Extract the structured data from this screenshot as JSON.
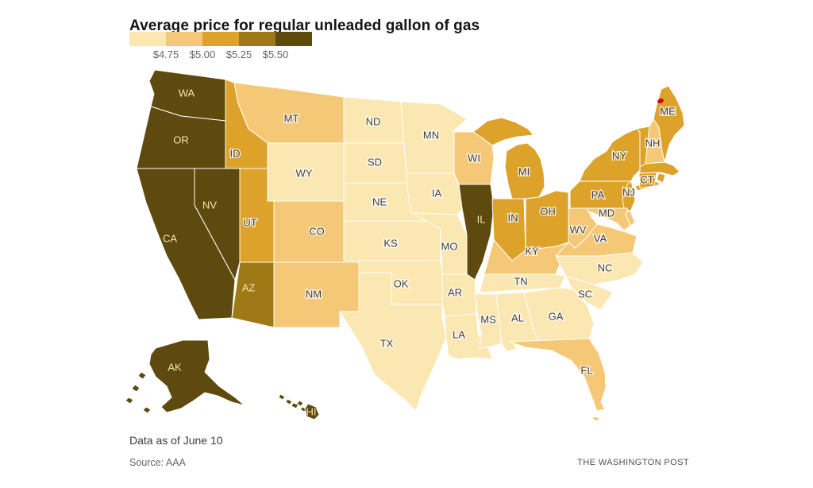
{
  "title": "Average price for regular unleaded gallon of gas",
  "legend": {
    "tick_labels": [
      "$4.75",
      "$5.00",
      "$5.25",
      "$5.50"
    ],
    "bucket_colors": [
      "#FBE7B2",
      "#F5C877",
      "#DDA22A",
      "#9E7915",
      "#5E4A0E"
    ],
    "bucket_ranges": [
      "<$4.75",
      "$4.75-$5.00",
      "$5.00-$5.25",
      "$5.25-$5.50",
      ">$5.50"
    ]
  },
  "marker": {
    "color": "#D0021B"
  },
  "footer": {
    "data_note": "Data as of June 10",
    "source": "Source: AAA",
    "credit": "THE WASHINGTON POST"
  },
  "chart_data": {
    "type": "choropleth",
    "title": "Average price for regular unleaded gallon of gas",
    "unit": "USD per regular unleaded gallon",
    "legend_thresholds": [
      "$4.75",
      "$5.00",
      "$5.25",
      "$5.50"
    ],
    "bucket_ranges": [
      "<$4.75",
      "$4.75-$5.00",
      "$5.00-$5.25",
      "$5.25-$5.50",
      ">$5.50"
    ],
    "states": [
      {
        "abbr": "WA",
        "bucket": 5,
        "labeled": true
      },
      {
        "abbr": "OR",
        "bucket": 5,
        "labeled": true
      },
      {
        "abbr": "CA",
        "bucket": 5,
        "labeled": true
      },
      {
        "abbr": "NV",
        "bucket": 5,
        "labeled": true
      },
      {
        "abbr": "ID",
        "bucket": 3,
        "labeled": true
      },
      {
        "abbr": "MT",
        "bucket": 2,
        "labeled": true
      },
      {
        "abbr": "WY",
        "bucket": 1,
        "labeled": true
      },
      {
        "abbr": "UT",
        "bucket": 3,
        "labeled": true
      },
      {
        "abbr": "CO",
        "bucket": 2,
        "labeled": true
      },
      {
        "abbr": "AZ",
        "bucket": 4,
        "labeled": true
      },
      {
        "abbr": "NM",
        "bucket": 2,
        "labeled": true
      },
      {
        "abbr": "ND",
        "bucket": 1,
        "labeled": true
      },
      {
        "abbr": "SD",
        "bucket": 1,
        "labeled": true
      },
      {
        "abbr": "NE",
        "bucket": 1,
        "labeled": true
      },
      {
        "abbr": "KS",
        "bucket": 1,
        "labeled": true
      },
      {
        "abbr": "OK",
        "bucket": 1,
        "labeled": true
      },
      {
        "abbr": "TX",
        "bucket": 1,
        "labeled": true
      },
      {
        "abbr": "MN",
        "bucket": 1,
        "labeled": true
      },
      {
        "abbr": "IA",
        "bucket": 1,
        "labeled": true
      },
      {
        "abbr": "MO",
        "bucket": 1,
        "labeled": true
      },
      {
        "abbr": "AR",
        "bucket": 1,
        "labeled": true
      },
      {
        "abbr": "LA",
        "bucket": 1,
        "labeled": true
      },
      {
        "abbr": "WI",
        "bucket": 2,
        "labeled": true
      },
      {
        "abbr": "IL",
        "bucket": 5,
        "labeled": true
      },
      {
        "abbr": "MI",
        "bucket": 3,
        "labeled": true
      },
      {
        "abbr": "IN",
        "bucket": 3,
        "labeled": true
      },
      {
        "abbr": "OH",
        "bucket": 3,
        "labeled": true
      },
      {
        "abbr": "KY",
        "bucket": 2,
        "labeled": true
      },
      {
        "abbr": "TN",
        "bucket": 1,
        "labeled": true
      },
      {
        "abbr": "MS",
        "bucket": 1,
        "labeled": true
      },
      {
        "abbr": "AL",
        "bucket": 1,
        "labeled": true
      },
      {
        "abbr": "GA",
        "bucket": 1,
        "labeled": true
      },
      {
        "abbr": "WV",
        "bucket": 2,
        "labeled": true
      },
      {
        "abbr": "VA",
        "bucket": 2,
        "labeled": true
      },
      {
        "abbr": "NC",
        "bucket": 1,
        "labeled": true
      },
      {
        "abbr": "SC",
        "bucket": 1,
        "labeled": true
      },
      {
        "abbr": "FL",
        "bucket": 2,
        "labeled": true
      },
      {
        "abbr": "PA",
        "bucket": 3,
        "labeled": true
      },
      {
        "abbr": "NY",
        "bucket": 3,
        "labeled": true
      },
      {
        "abbr": "NJ",
        "bucket": 3,
        "labeled": true
      },
      {
        "abbr": "VT",
        "bucket": 3,
        "labeled": false
      },
      {
        "abbr": "NH",
        "bucket": 2,
        "labeled": true
      },
      {
        "abbr": "ME",
        "bucket": 3,
        "labeled": true
      },
      {
        "abbr": "MA",
        "bucket": 3,
        "labeled": false
      },
      {
        "abbr": "RI",
        "bucket": 3,
        "labeled": false
      },
      {
        "abbr": "CT",
        "bucket": 3,
        "labeled": true
      },
      {
        "abbr": "DE",
        "bucket": 2,
        "labeled": false
      },
      {
        "abbr": "MD",
        "bucket": 2,
        "labeled": true
      },
      {
        "abbr": "AK",
        "bucket": 5,
        "labeled": true
      },
      {
        "abbr": "HI",
        "bucket": 5,
        "labeled": true
      }
    ]
  }
}
